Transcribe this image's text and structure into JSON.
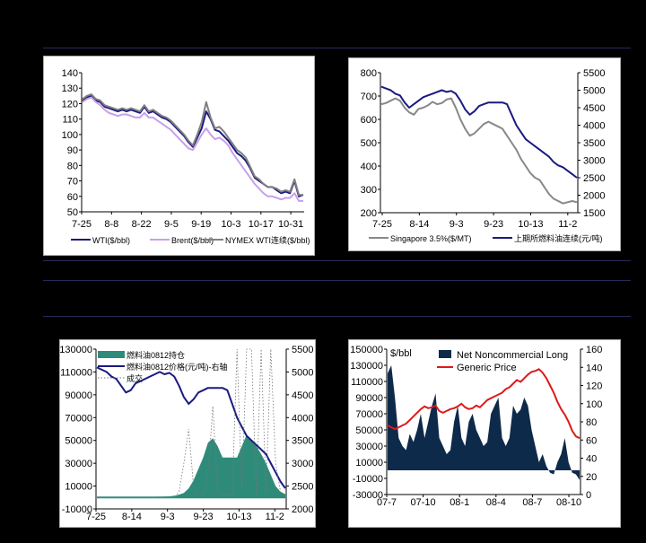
{
  "colors": {
    "background": "#000000",
    "separator": "#2a2a5a"
  },
  "chart_data": [
    {
      "type": "line",
      "title": "",
      "x_ticks": [
        "7-25",
        "8-8",
        "8-22",
        "9-5",
        "9-19",
        "10-3",
        "10-17",
        "10-31"
      ],
      "y_ticks": [
        50,
        60,
        70,
        80,
        90,
        100,
        110,
        120,
        130,
        140
      ],
      "ylim": [
        50,
        140
      ],
      "legend_position": "bottom",
      "grid": false,
      "series": [
        {
          "name": "WTI($/bbl)",
          "color": "#1a1a80",
          "values": [
            122,
            124,
            125,
            122,
            121,
            118,
            117,
            116,
            115,
            116,
            115,
            116,
            115,
            114,
            118,
            114,
            115,
            113,
            111,
            110,
            108,
            105,
            102,
            99,
            95,
            92,
            98,
            104,
            115,
            110,
            103,
            102,
            99,
            96,
            92,
            88,
            86,
            83,
            78,
            72,
            70,
            68,
            66,
            66,
            64,
            62,
            63,
            62,
            70,
            60,
            61
          ]
        },
        {
          "name": "Brent($/bbl)",
          "color": "#c8a0e8",
          "values": [
            121,
            123,
            124,
            121,
            119,
            116,
            114,
            113,
            112,
            113,
            113,
            112,
            111,
            111,
            114,
            111,
            111,
            109,
            107,
            105,
            103,
            100,
            97,
            94,
            91,
            90,
            95,
            100,
            104,
            100,
            97,
            98,
            96,
            93,
            88,
            84,
            80,
            76,
            72,
            68,
            65,
            62,
            60,
            60,
            59,
            58,
            59,
            59,
            62,
            57,
            57
          ]
        },
        {
          "name": "NYMEX WTI连续($/bbl)",
          "color": "#808080",
          "values": [
            123,
            125,
            126,
            123,
            122,
            119,
            118,
            117,
            116,
            117,
            116,
            117,
            116,
            115,
            119,
            115,
            116,
            114,
            112,
            111,
            109,
            106,
            103,
            100,
            96,
            93,
            100,
            108,
            121,
            111,
            104,
            105,
            102,
            98,
            94,
            90,
            88,
            85,
            79,
            73,
            71,
            68,
            66,
            66,
            65,
            63,
            64,
            63,
            71,
            61,
            61
          ]
        }
      ]
    },
    {
      "type": "line",
      "title": "",
      "x_ticks": [
        "7-25",
        "8-14",
        "9-3",
        "9-23",
        "10-13",
        "11-2"
      ],
      "y_ticks_left": [
        200,
        300,
        400,
        500,
        600,
        700,
        800
      ],
      "y_ticks_right": [
        1500,
        2000,
        2500,
        3000,
        3500,
        4000,
        4500,
        5000,
        5500
      ],
      "ylim_left": [
        200,
        800
      ],
      "ylim_right": [
        1500,
        5500
      ],
      "legend_position": "bottom",
      "series": [
        {
          "name": "Singapore 3.5%($/MT)",
          "axis": "left",
          "color": "#888888",
          "values": [
            665,
            670,
            680,
            690,
            680,
            650,
            630,
            620,
            645,
            650,
            660,
            675,
            665,
            670,
            685,
            690,
            650,
            600,
            560,
            530,
            540,
            560,
            580,
            590,
            580,
            570,
            560,
            530,
            500,
            470,
            430,
            400,
            370,
            350,
            340,
            310,
            280,
            260,
            250,
            240,
            245,
            250,
            245
          ]
        },
        {
          "name": "上期所燃料油连续(元/吨)",
          "axis": "right",
          "color": "#1a1a80",
          "values": [
            5100,
            5050,
            5000,
            4900,
            4850,
            4650,
            4500,
            4600,
            4700,
            4800,
            4850,
            4900,
            4950,
            5000,
            4950,
            4980,
            4900,
            4700,
            4450,
            4300,
            4400,
            4550,
            4600,
            4650,
            4650,
            4650,
            4650,
            4600,
            4300,
            4000,
            3800,
            3600,
            3500,
            3400,
            3300,
            3200,
            3100,
            2950,
            2850,
            2800,
            2700,
            2600,
            2500
          ]
        }
      ]
    },
    {
      "type": "area",
      "title": "",
      "x_ticks": [
        "7-25",
        "8-14",
        "9-3",
        "9-23",
        "10-13",
        "11-2"
      ],
      "y_ticks_left": [
        -10000,
        10000,
        30000,
        50000,
        70000,
        90000,
        110000,
        130000
      ],
      "y_ticks_right": [
        2000,
        2500,
        3000,
        3500,
        4000,
        4500,
        5000,
        5500
      ],
      "ylim_left": [
        -10000,
        130000
      ],
      "ylim_right": [
        2000,
        5500
      ],
      "legend_position": "top-left",
      "series": [
        {
          "name": "燃料油0812持仓",
          "axis": "left",
          "kind": "area",
          "color": "#2e8b7a",
          "values": [
            500,
            500,
            500,
            500,
            500,
            500,
            500,
            500,
            500,
            500,
            500,
            600,
            600,
            700,
            800,
            1000,
            1500,
            2500,
            4000,
            8000,
            15000,
            25000,
            35000,
            48000,
            52000,
            45000,
            35000,
            35000,
            35000,
            35000,
            45000,
            55000,
            50000,
            45000,
            38000,
            30000,
            20000,
            10000,
            5000,
            3000
          ]
        },
        {
          "name": "燃料油0812价格(元/吨)-右轴",
          "axis": "right",
          "kind": "line",
          "color": "#1a1a80",
          "values": [
            5100,
            5050,
            5000,
            4900,
            4850,
            4700,
            4550,
            4600,
            4750,
            4800,
            4850,
            4900,
            4950,
            5000,
            4950,
            4980,
            4900,
            4700,
            4450,
            4300,
            4400,
            4550,
            4600,
            4650,
            4650,
            4650,
            4650,
            4600,
            4300,
            4000,
            3800,
            3600,
            3500,
            3400,
            3300,
            3200,
            3000,
            2800,
            2600,
            2450
          ]
        },
        {
          "name": "成交",
          "axis": "left",
          "kind": "dotted",
          "color": "#777777",
          "values": [
            0,
            0,
            0,
            0,
            0,
            0,
            0,
            0,
            0,
            0,
            0,
            0,
            0,
            0,
            0,
            0,
            0,
            5000,
            30000,
            60000,
            10000,
            3000,
            2000,
            20000,
            80000,
            5000,
            2000,
            2000,
            2000,
            130000,
            5000,
            130000,
            130000,
            2000,
            130000,
            5000,
            130000,
            30000,
            5000,
            2000
          ]
        }
      ]
    },
    {
      "type": "area",
      "title": "",
      "ylabel_left": "$/bbl",
      "x_ticks": [
        "07-7",
        "07-10",
        "08-1",
        "08-4",
        "08-7",
        "08-10"
      ],
      "y_ticks_left": [
        -30000,
        -10000,
        10000,
        30000,
        50000,
        70000,
        90000,
        110000,
        130000,
        150000
      ],
      "y_ticks_right": [
        0,
        20,
        40,
        60,
        80,
        100,
        120,
        140,
        160
      ],
      "ylim_left": [
        -30000,
        150000
      ],
      "ylim_right": [
        0,
        160
      ],
      "legend_position": "top",
      "series": [
        {
          "name": "Net Noncommercial Long",
          "axis": "left",
          "kind": "area",
          "color": "#0d2a4a",
          "values": [
            120000,
            130000,
            90000,
            40000,
            30000,
            25000,
            45000,
            35000,
            50000,
            70000,
            40000,
            60000,
            80000,
            95000,
            40000,
            30000,
            20000,
            25000,
            60000,
            80000,
            40000,
            30000,
            60000,
            70000,
            50000,
            40000,
            30000,
            35000,
            70000,
            80000,
            90000,
            40000,
            30000,
            40000,
            80000,
            70000,
            75000,
            90000,
            80000,
            50000,
            30000,
            10000,
            20000,
            5000,
            -3000,
            -5000,
            10000,
            20000,
            40000,
            10000,
            -3000,
            -5000,
            -12000
          ]
        },
        {
          "name": "Generic Price",
          "axis": "right",
          "kind": "line",
          "color": "#dd1a1a",
          "values": [
            76,
            74,
            72,
            74,
            76,
            78,
            82,
            86,
            90,
            94,
            97,
            95,
            96,
            98,
            92,
            90,
            92,
            94,
            95,
            97,
            100,
            96,
            94,
            95,
            98,
            96,
            100,
            104,
            106,
            108,
            110,
            112,
            116,
            118,
            122,
            126,
            124,
            128,
            132,
            135,
            136,
            138,
            134,
            128,
            120,
            112,
            102,
            94,
            88,
            80,
            70,
            64,
            62
          ]
        }
      ]
    }
  ]
}
